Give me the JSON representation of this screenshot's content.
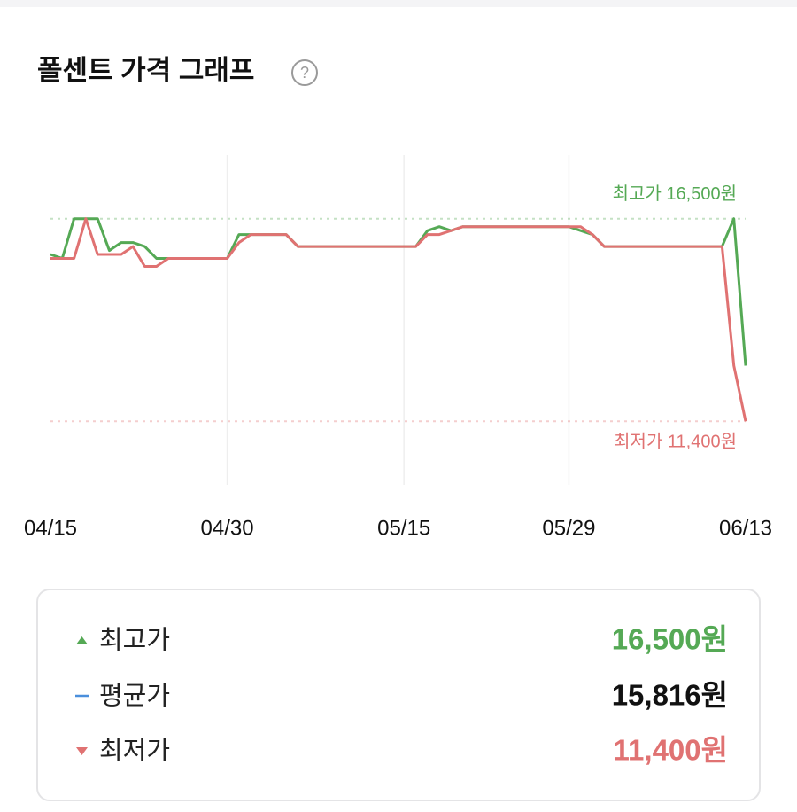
{
  "header": {
    "title": "폴센트 가격 그래프",
    "help_icon": "?"
  },
  "chart_data": {
    "type": "line",
    "categories": [
      "04/15",
      null,
      null,
      null,
      null,
      null,
      null,
      null,
      null,
      null,
      null,
      null,
      null,
      null,
      null,
      "04/30",
      null,
      null,
      null,
      null,
      null,
      null,
      null,
      null,
      null,
      null,
      null,
      null,
      null,
      null,
      "05/15",
      null,
      null,
      null,
      null,
      null,
      null,
      null,
      null,
      null,
      null,
      null,
      null,
      null,
      "05/29",
      null,
      null,
      null,
      null,
      null,
      null,
      null,
      null,
      null,
      null,
      null,
      null,
      null,
      null,
      "06/13"
    ],
    "series": [
      {
        "color": "#55a955",
        "values": [
          15600,
          15500,
          16500,
          16500,
          16500,
          15700,
          15900,
          15900,
          15800,
          15500,
          15500,
          15500,
          15500,
          15500,
          15500,
          15500,
          16100,
          16100,
          16100,
          16100,
          16100,
          15800,
          15800,
          15800,
          15800,
          15800,
          15800,
          15800,
          15800,
          15800,
          15800,
          15800,
          16200,
          16300,
          16200,
          16300,
          16300,
          16300,
          16300,
          16300,
          16300,
          16300,
          16300,
          16300,
          16300,
          16200,
          16100,
          15800,
          15800,
          15800,
          15800,
          15800,
          15800,
          15800,
          15800,
          15800,
          15800,
          15800,
          16500,
          12800
        ]
      },
      {
        "color": "#e07272",
        "values": [
          15500,
          15500,
          15500,
          16500,
          15600,
          15600,
          15600,
          15800,
          15300,
          15300,
          15500,
          15500,
          15500,
          15500,
          15500,
          15500,
          15900,
          16100,
          16100,
          16100,
          16100,
          15800,
          15800,
          15800,
          15800,
          15800,
          15800,
          15800,
          15800,
          15800,
          15800,
          15800,
          16100,
          16100,
          16200,
          16300,
          16300,
          16300,
          16300,
          16300,
          16300,
          16300,
          16300,
          16300,
          16300,
          16300,
          16100,
          15800,
          15800,
          15800,
          15800,
          15800,
          15800,
          15800,
          15800,
          15800,
          15800,
          15800,
          12800,
          11400
        ]
      }
    ],
    "ylim": [
      9800,
      18100
    ],
    "grid": true,
    "reference_lines": [
      {
        "value": 16500,
        "label": "최고가 16,500원",
        "color": "#55a955"
      },
      {
        "value": 11400,
        "label": "최저가 11,400원",
        "color": "#e07272"
      }
    ]
  },
  "summary": {
    "rows": [
      {
        "marker": "up",
        "label": "최고가",
        "value": "16,500원",
        "color": "#55a955",
        "marker_color": "#55a955"
      },
      {
        "marker": "dash",
        "label": "평균가",
        "value": "15,816원",
        "color": "#111111",
        "marker_color": "#4a8fdc"
      },
      {
        "marker": "down",
        "label": "최저가",
        "value": "11,400원",
        "color": "#e07272",
        "marker_color": "#e07272"
      }
    ]
  }
}
